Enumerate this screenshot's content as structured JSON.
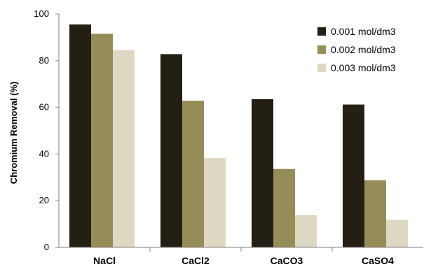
{
  "chart_data": {
    "type": "bar",
    "title": "",
    "xlabel": "",
    "ylabel": "Chromium Removal (%)",
    "ylim": [
      0,
      100
    ],
    "yticks": [
      0,
      20,
      40,
      60,
      80,
      100
    ],
    "grid": false,
    "legend_position": "top-right",
    "categories": [
      "NaCl",
      "CaCl2",
      "CaCO3",
      "CaSO4"
    ],
    "series": [
      {
        "name": "0.001  mol/dm3",
        "color": "#231f14",
        "values": [
          95.5,
          82.8,
          63.5,
          61.2
        ]
      },
      {
        "name": "0.002  mol/dm3",
        "color": "#958c57",
        "values": [
          91.5,
          62.8,
          33.6,
          28.7
        ]
      },
      {
        "name": "0.003  mol/dm3",
        "color": "#ddd8c2",
        "values": [
          84.5,
          38.3,
          13.8,
          11.8
        ]
      }
    ]
  }
}
